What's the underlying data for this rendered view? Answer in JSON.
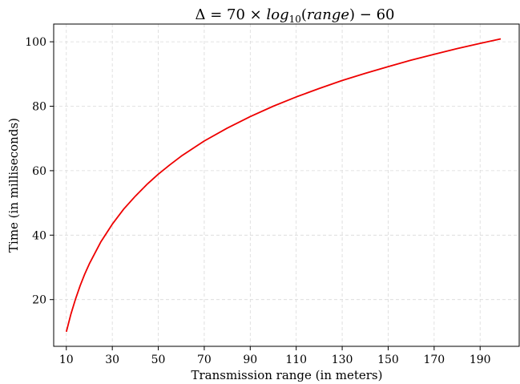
{
  "chart_data": {
    "type": "line",
    "title": {
      "delta": "Δ",
      "eq": " = 70 × ",
      "log": "log",
      "sub": "10",
      "open": "(",
      "arg": "range",
      "close": ") − 60"
    },
    "xlabel": "Transmission range (in meters)",
    "ylabel": "Time (in milliseconds)",
    "xlim": [
      4.5,
      207
    ],
    "ylim": [
      5.5,
      105.5
    ],
    "x_ticks": [
      10,
      30,
      50,
      70,
      90,
      110,
      130,
      150,
      170,
      190
    ],
    "y_ticks": [
      20,
      40,
      60,
      80,
      100
    ],
    "grid": true,
    "series": [
      {
        "color": "#ee0000",
        "x": [
          10,
          12,
          14,
          16,
          18,
          20,
          25,
          30,
          35,
          40,
          45,
          50,
          55,
          60,
          65,
          70,
          80,
          90,
          100,
          110,
          120,
          130,
          140,
          150,
          160,
          170,
          180,
          190,
          199
        ],
        "y": [
          10,
          15.5,
          20.2,
          24.3,
          27.9,
          31.1,
          37.9,
          43.4,
          48.1,
          52.1,
          55.7,
          58.9,
          61.8,
          64.5,
          66.9,
          69.2,
          73.2,
          76.8,
          80.0,
          82.9,
          85.5,
          88.0,
          90.2,
          92.3,
          94.3,
          96.1,
          97.9,
          99.5,
          100.9
        ]
      }
    ]
  }
}
